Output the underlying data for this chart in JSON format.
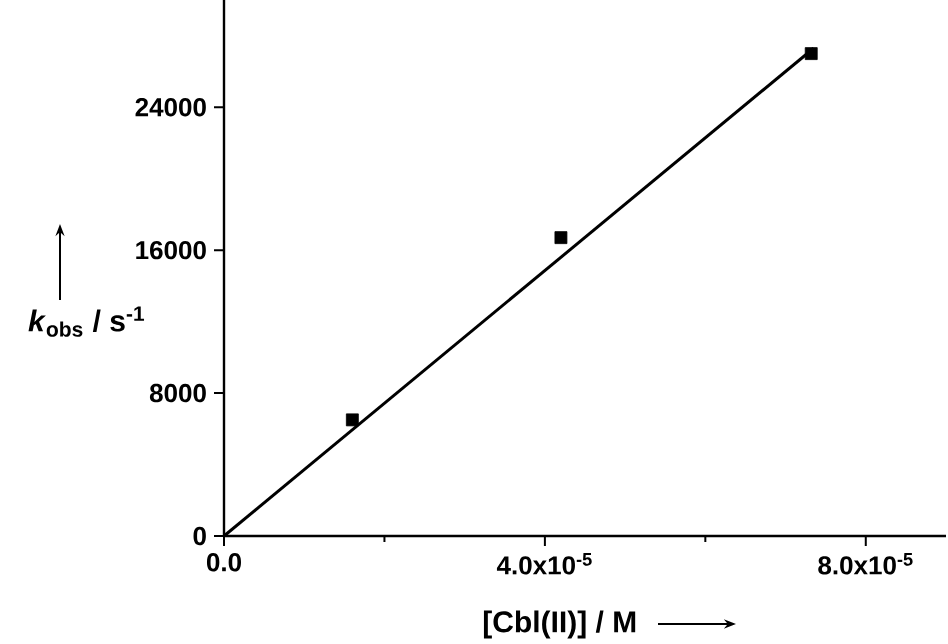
{
  "chart_data": {
    "type": "scatter",
    "xlabel": "[Cbl(II)] / M",
    "ylabel": "*k*$_{obs}$ / s$^{-1}$",
    "series": [
      {
        "color": "#000000",
        "marker": "square",
        "x": [
          1.6e-05,
          4.2e-05,
          7.32e-05
        ],
        "values": [
          6500,
          16700,
          27000
        ]
      },
      {
        "type": "line",
        "color": "#000000",
        "marker": "none",
        "line_style": "solid",
        "x": [
          0,
          7.35e-05
        ],
        "values": [
          0,
          27300
        ]
      }
    ],
    "xlim": [
      0,
      9e-05
    ],
    "ylim": [
      0,
      30000
    ],
    "xticks": [
      {
        "value": 0,
        "label": "0.0"
      },
      {
        "value": 2e-05,
        "label": null
      },
      {
        "value": 4e-05,
        "label": "4.0x10$^{-5}$"
      },
      {
        "value": 6e-05,
        "label": null
      },
      {
        "value": 8e-05,
        "label": "8.0x10$^{-5}$"
      }
    ],
    "yticks": [
      0,
      8000,
      16000,
      24000
    ],
    "grid": false
  }
}
